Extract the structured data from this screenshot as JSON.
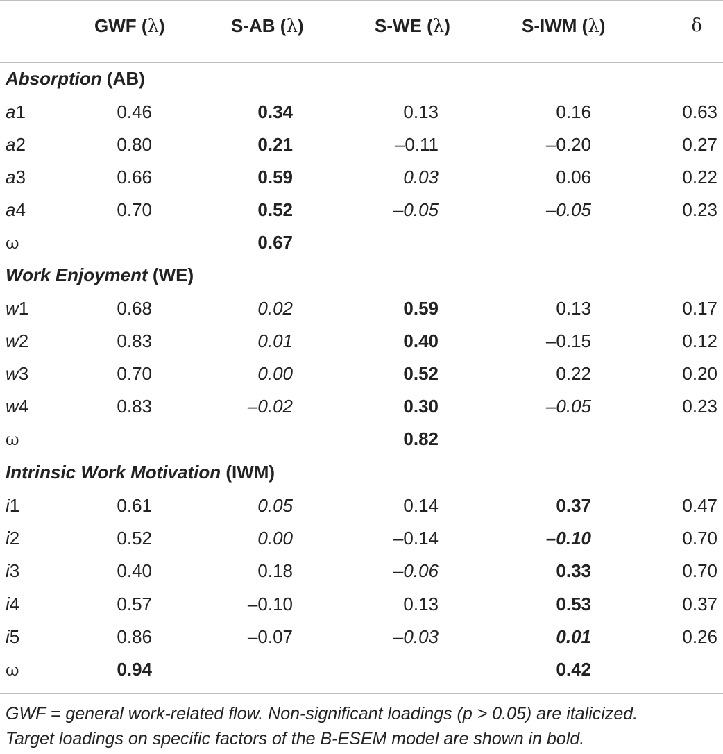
{
  "header": {
    "gwf": "GWF (",
    "sab": "S-AB (",
    "swe": "S-WE (",
    "siwm": "S-IWM (",
    "lambda": "λ",
    "close": ")",
    "delta": "δ"
  },
  "sections": {
    "ab": {
      "name": "Absorption",
      "abbr": "(AB)"
    },
    "we": {
      "name": "Work Enjoyment",
      "abbr": "(WE)"
    },
    "iwm": {
      "name": "Intrinsic Work Motivation",
      "abbr": "(IWM)"
    }
  },
  "omega_label": "ω",
  "rows": {
    "a1": {
      "letter": "a",
      "num": "1",
      "gwf": "0.46",
      "sab": "0.34",
      "swe": "0.13",
      "siwm": "0.16",
      "delta": "0.63"
    },
    "a2": {
      "letter": "a",
      "num": "2",
      "gwf": "0.80",
      "sab": "0.21",
      "swe": "–0.11",
      "siwm": "–0.20",
      "delta": "0.27"
    },
    "a3": {
      "letter": "a",
      "num": "3",
      "gwf": "0.66",
      "sab": "0.59",
      "swe": "0.03",
      "siwm": "0.06",
      "delta": "0.22"
    },
    "a4": {
      "letter": "a",
      "num": "4",
      "gwf": "0.70",
      "sab": "0.52",
      "swe": "–0.05",
      "siwm": "–0.05",
      "delta": "0.23"
    },
    "ab_omega": {
      "sab": "0.67"
    },
    "w1": {
      "letter": "w",
      "num": "1",
      "gwf": "0.68",
      "sab": "0.02",
      "swe": "0.59",
      "siwm": "0.13",
      "delta": "0.17"
    },
    "w2": {
      "letter": "w",
      "num": "2",
      "gwf": "0.83",
      "sab": "0.01",
      "swe": "0.40",
      "siwm": "–0.15",
      "delta": "0.12"
    },
    "w3": {
      "letter": "w",
      "num": "3",
      "gwf": "0.70",
      "sab": "0.00",
      "swe": "0.52",
      "siwm": "0.22",
      "delta": "0.20"
    },
    "w4": {
      "letter": "w",
      "num": "4",
      "gwf": "0.83",
      "sab": "–0.02",
      "swe": "0.30",
      "siwm": "–0.05",
      "delta": "0.23"
    },
    "we_omega": {
      "swe": "0.82"
    },
    "i1": {
      "letter": "i",
      "num": "1",
      "gwf": "0.61",
      "sab": "0.05",
      "swe": "0.14",
      "siwm": "0.37",
      "delta": "0.47"
    },
    "i2": {
      "letter": "i",
      "num": "2",
      "gwf": "0.52",
      "sab": "0.00",
      "swe": "–0.14",
      "siwm": "–0.10",
      "delta": "0.70"
    },
    "i3": {
      "letter": "i",
      "num": "3",
      "gwf": "0.40",
      "sab": "0.18",
      "swe": "–0.06",
      "siwm": "0.33",
      "delta": "0.70"
    },
    "i4": {
      "letter": "i",
      "num": "4",
      "gwf": "0.57",
      "sab": "–0.10",
      "swe": "0.13",
      "siwm": "0.53",
      "delta": "0.37"
    },
    "i5": {
      "letter": "i",
      "num": "5",
      "gwf": "0.86",
      "sab": "–0.07",
      "swe": "–0.03",
      "siwm": "0.01",
      "delta": "0.26"
    },
    "iwm_omega": {
      "gwf": "0.94",
      "siwm": "0.42"
    }
  },
  "footnote": {
    "line1": "GWF = general work-related flow. Non-significant loadings (p > 0.05) are italicized.",
    "line2": "Target loadings on specific factors of the B-ESEM model are shown in bold."
  }
}
